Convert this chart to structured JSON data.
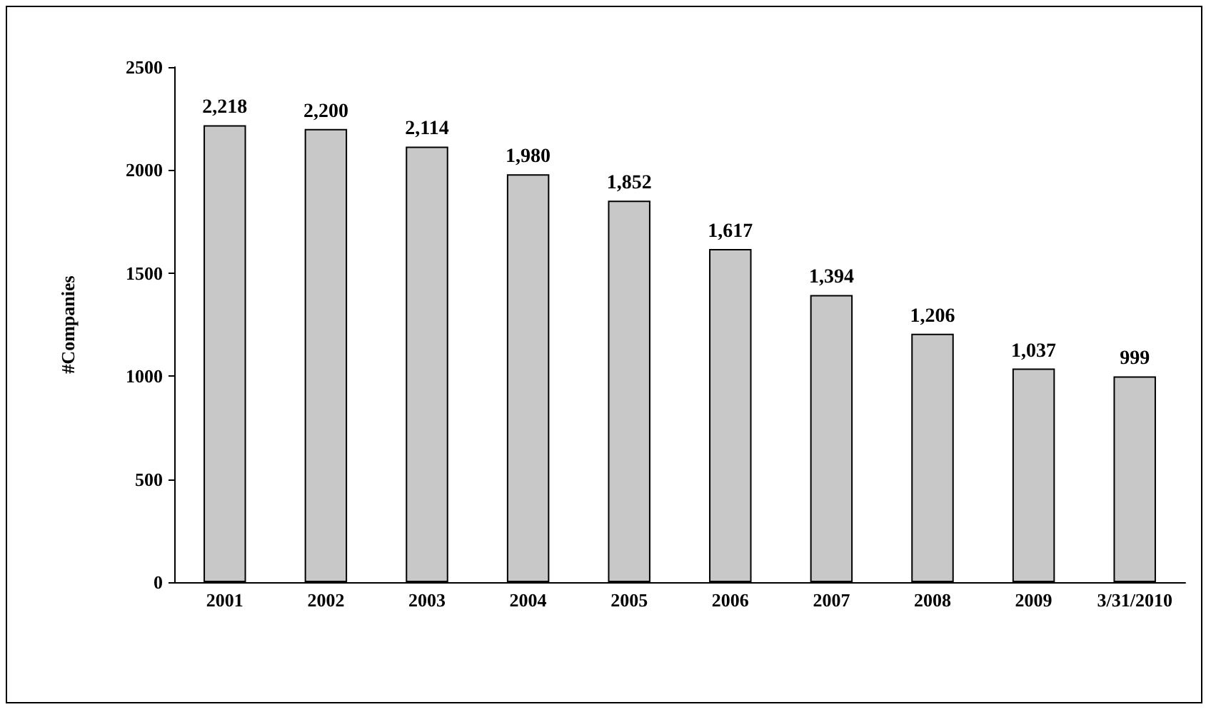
{
  "chart_data": {
    "type": "bar",
    "ylabel": "#Companies",
    "categories": [
      "2001",
      "2002",
      "2003",
      "2004",
      "2005",
      "2006",
      "2007",
      "2008",
      "2009",
      "3/31/2010"
    ],
    "values": [
      2218,
      2200,
      2114,
      1980,
      1852,
      1617,
      1394,
      1206,
      1037,
      999
    ],
    "value_labels": [
      "2,218",
      "2,200",
      "2,114",
      "1,980",
      "1,852",
      "1,617",
      "1,394",
      "1,206",
      "1,037",
      "999"
    ],
    "color": "#c8c8c8",
    "ylim": [
      0,
      2500
    ],
    "yticks": [
      0,
      500,
      1000,
      1500,
      2000,
      2500
    ],
    "grid": false
  }
}
